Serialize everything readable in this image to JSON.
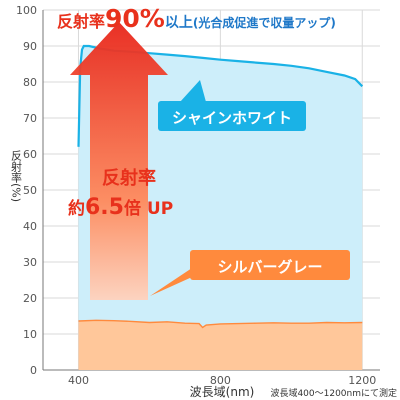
{
  "headline": {
    "label_part": "反射率",
    "value_part": "90%",
    "suffix_part": "以上",
    "note_part": "(光合成促進で収量アップ)"
  },
  "callout": {
    "line1": "反射率",
    "line2_prefix": "約",
    "line2_value": "6.5",
    "line2_suffix": "倍 UP"
  },
  "footnote": "波長域400〜1200nmにて測定",
  "colors": {
    "shine_white": "#1ab2e6",
    "silver_grey": "#ff8a3d",
    "shine_fill": "#cdeefa",
    "silver_fill": "#ffc79a",
    "headline_red": "#e8311c",
    "headline_blue": "#1f78c8"
  },
  "chart_data": {
    "type": "area",
    "xlabel": "波長域(nm)",
    "ylabel": "反射率(%)",
    "xlim": [
      300,
      1250
    ],
    "ylim": [
      0,
      100
    ],
    "x_ticks": [
      400,
      800,
      1200
    ],
    "y_ticks": [
      0,
      10,
      20,
      30,
      40,
      50,
      60,
      70,
      80,
      90,
      100
    ],
    "grid": true,
    "series": [
      {
        "name": "シャインホワイト",
        "points": [
          [
            400,
            62
          ],
          [
            405,
            84
          ],
          [
            410,
            89
          ],
          [
            415,
            90
          ],
          [
            430,
            90
          ],
          [
            460,
            89.3
          ],
          [
            500,
            88.7
          ],
          [
            550,
            88.4
          ],
          [
            600,
            88
          ],
          [
            650,
            87.6
          ],
          [
            700,
            87.2
          ],
          [
            750,
            86.7
          ],
          [
            800,
            86.2
          ],
          [
            850,
            85.8
          ],
          [
            900,
            85.4
          ],
          [
            950,
            85
          ],
          [
            1000,
            84.5
          ],
          [
            1050,
            83.8
          ],
          [
            1100,
            82.8
          ],
          [
            1150,
            81.8
          ],
          [
            1180,
            80.8
          ],
          [
            1200,
            78.8
          ]
        ]
      },
      {
        "name": "シルバーグレー",
        "points": [
          [
            400,
            13.6
          ],
          [
            450,
            13.8
          ],
          [
            500,
            13.7
          ],
          [
            550,
            13.5
          ],
          [
            600,
            13.2
          ],
          [
            650,
            13.4
          ],
          [
            700,
            13
          ],
          [
            740,
            12.9
          ],
          [
            750,
            11.8
          ],
          [
            760,
            12.5
          ],
          [
            800,
            12.8
          ],
          [
            850,
            12.9
          ],
          [
            900,
            13
          ],
          [
            950,
            13.1
          ],
          [
            1000,
            13
          ],
          [
            1050,
            13
          ],
          [
            1100,
            13.2
          ],
          [
            1150,
            13.1
          ],
          [
            1200,
            13.2
          ]
        ]
      }
    ]
  }
}
